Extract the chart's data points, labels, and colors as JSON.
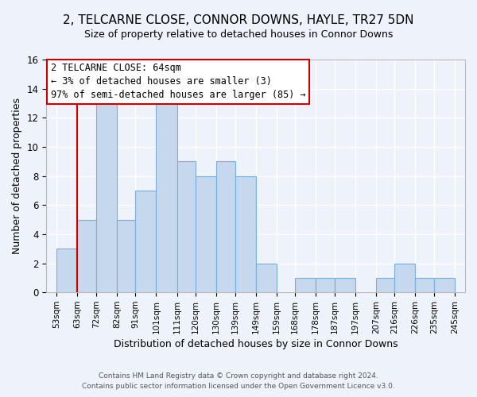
{
  "title": "2, TELCARNE CLOSE, CONNOR DOWNS, HAYLE, TR27 5DN",
  "subtitle": "Size of property relative to detached houses in Connor Downs",
  "xlabel": "Distribution of detached houses by size in Connor Downs",
  "ylabel": "Number of detached properties",
  "bin_edges": [
    53,
    63,
    72,
    82,
    91,
    101,
    111,
    120,
    130,
    139,
    149,
    159,
    168,
    178,
    187,
    197,
    207,
    216,
    226,
    235,
    245
  ],
  "counts": [
    3,
    5,
    13,
    5,
    7,
    13,
    9,
    8,
    9,
    8,
    2,
    0,
    1,
    1,
    1,
    0,
    1,
    2,
    1,
    1
  ],
  "bar_facecolor": "#c5d8ee",
  "bar_edgecolor": "#7aaed6",
  "bar_linewidth": 0.8,
  "redline_x": 63,
  "ylim": [
    0,
    16
  ],
  "yticks": [
    0,
    2,
    4,
    6,
    8,
    10,
    12,
    14,
    16
  ],
  "annotation_line1": "2 TELCARNE CLOSE: 64sqm",
  "annotation_line2": "← 3% of detached houses are smaller (3)",
  "annotation_line3": "97% of semi-detached houses are larger (85) →",
  "annotation_box_facecolor": "#ffffff",
  "annotation_box_edgecolor": "#cc0000",
  "footer_line1": "Contains HM Land Registry data © Crown copyright and database right 2024.",
  "footer_line2": "Contains public sector information licensed under the Open Government Licence v3.0.",
  "background_color": "#eef2fa",
  "tick_labels": [
    "53sqm",
    "63sqm",
    "72sqm",
    "82sqm",
    "91sqm",
    "101sqm",
    "111sqm",
    "120sqm",
    "130sqm",
    "139sqm",
    "149sqm",
    "159sqm",
    "168sqm",
    "178sqm",
    "187sqm",
    "197sqm",
    "207sqm",
    "216sqm",
    "226sqm",
    "235sqm",
    "245sqm"
  ],
  "title_fontsize": 11,
  "subtitle_fontsize": 9,
  "xlabel_fontsize": 9,
  "ylabel_fontsize": 9,
  "tick_fontsize": 7.5,
  "ytick_fontsize": 8.5,
  "annotation_fontsize": 8.5,
  "footer_fontsize": 6.5
}
